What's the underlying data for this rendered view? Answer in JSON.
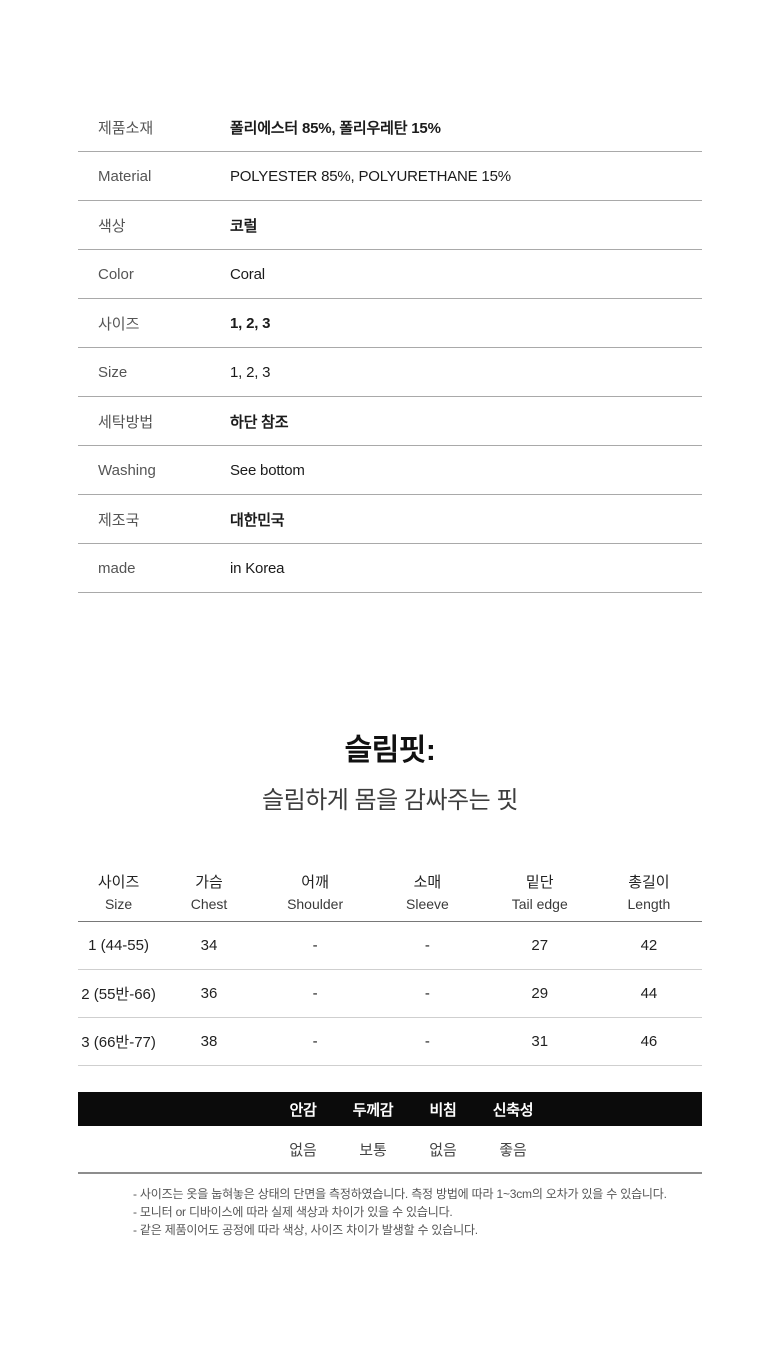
{
  "info_table": {
    "rows": [
      {
        "label": "제품소재",
        "value": "폴리에스터 85%, 폴리우레탄 15%"
      },
      {
        "label": "Material",
        "value": "POLYESTER 85%, POLYURETHANE 15%"
      },
      {
        "label": "색상",
        "value": "코럴"
      },
      {
        "label": "Color",
        "value": "Coral"
      },
      {
        "label": "사이즈",
        "value": "1, 2, 3"
      },
      {
        "label": "Size",
        "value": "1, 2, 3"
      },
      {
        "label": "세탁방법",
        "value": "하단 참조"
      },
      {
        "label": "Washing",
        "value": "See bottom"
      },
      {
        "label": "제조국",
        "value": "대한민국"
      },
      {
        "label": "made",
        "value": "in Korea"
      }
    ]
  },
  "fit_heading": {
    "title": "슬림핏:",
    "subtitle": "슬림하게 몸을 감싸주는 핏"
  },
  "size_chart": {
    "columns": [
      {
        "ko": "사이즈",
        "en": "Size"
      },
      {
        "ko": "가슴",
        "en": "Chest"
      },
      {
        "ko": "어깨",
        "en": "Shoulder"
      },
      {
        "ko": "소매",
        "en": "Sleeve"
      },
      {
        "ko": "밑단",
        "en": "Tail edge"
      },
      {
        "ko": "총길이",
        "en": "Length"
      }
    ],
    "rows": [
      [
        "1 (44-55)",
        "34",
        "-",
        "-",
        "27",
        "42"
      ],
      [
        "2 (55반-66)",
        "36",
        "-",
        "-",
        "29",
        "44"
      ],
      [
        "3 (66반-77)",
        "38",
        "-",
        "-",
        "31",
        "46"
      ]
    ]
  },
  "fabric_info": {
    "headers": [
      "안감",
      "두께감",
      "비침",
      "신축성"
    ],
    "values": [
      "없음",
      "보통",
      "없음",
      "좋음"
    ]
  },
  "notes": [
    "- 사이즈는 옷을 눕혀놓은 상태의 단면을 측정하였습니다. 측정 방법에 따라 1~3cm의 오차가 있을 수 있습니다.",
    "- 모니터 or 디바이스에 따라 실제 색상과 차이가 있을 수 있습니다.",
    "- 같은 제품이어도 공정에 따라 색상, 사이즈 차이가 발생할 수 있습니다."
  ],
  "colors": {
    "bar_bg": "#0b0b0b",
    "bar_text": "#ffffff",
    "rule_light": "#cfcfcf",
    "rule_mid": "#a9a9a9",
    "rule_dark": "#787878"
  }
}
